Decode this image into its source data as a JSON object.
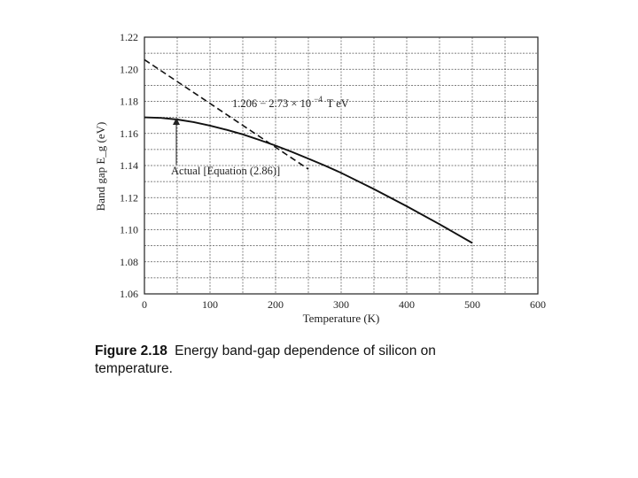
{
  "chart_data": {
    "type": "line",
    "xlabel": "Temperature (K)",
    "ylabel": "Band gap E_g (eV)",
    "xlim": [
      0,
      600
    ],
    "ylim": [
      1.06,
      1.22
    ],
    "xticks": [
      "0",
      "100",
      "200",
      "300",
      "400",
      "500",
      "600"
    ],
    "yticks": [
      "1.06",
      "1.08",
      "1.10",
      "1.12",
      "1.14",
      "1.16",
      "1.18",
      "1.20",
      "1.22"
    ],
    "grid": true,
    "series": [
      {
        "name": "Actual [Equation (2.86)]",
        "style": "solid",
        "x": [
          0,
          25,
          50,
          75,
          100,
          125,
          150,
          175,
          200,
          225,
          250,
          275,
          300,
          350,
          400,
          450,
          500
        ],
        "y": [
          1.17,
          1.1697,
          1.1687,
          1.1671,
          1.1649,
          1.1623,
          1.1594,
          1.156,
          1.1524,
          1.1485,
          1.1443,
          1.14,
          1.1354,
          1.1253,
          1.1146,
          1.1034,
          1.0917
        ]
      },
      {
        "name": "1.206 − 2.73 × 10⁻⁴ T eV",
        "style": "dashed",
        "x": [
          0,
          250
        ],
        "y": [
          1.206,
          1.13775
        ]
      }
    ],
    "annotations": {
      "linear_fit": "1.206 − 2.73 × 10",
      "linear_fit_exponent": "−4",
      "linear_fit_tail": "T eV",
      "actual": "Actual [Equation (2.86)]"
    }
  },
  "caption": {
    "figure_label": "Figure 2.18",
    "text": "Energy band-gap dependence of silicon on temperature."
  }
}
